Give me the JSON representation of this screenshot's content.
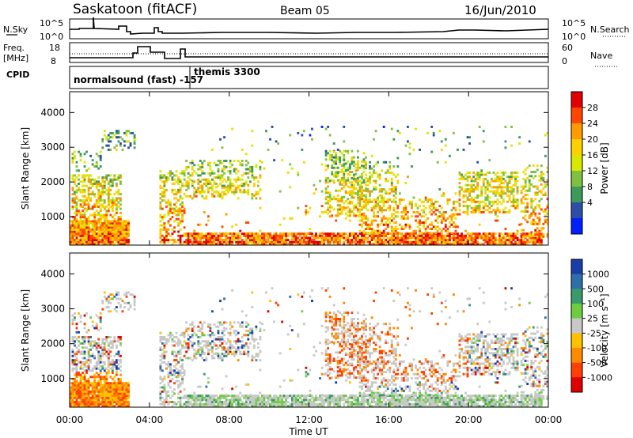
{
  "header": {
    "title": "Saskatoon (fitACF)",
    "beam": "Beam 05",
    "date": "16/Jun/2010"
  },
  "panels": {
    "nsky": {
      "left_label": "N.Sky",
      "right_label": "N.Search",
      "ticks_left": [
        "10^5",
        "10^0"
      ],
      "ticks_right": [
        "10^5",
        "10^0"
      ]
    },
    "freq": {
      "left_label_1": "Freq.",
      "left_label_2": "[MHz]",
      "right_label": "Nave",
      "ticks_left": [
        "18",
        "8"
      ],
      "ticks_right": [
        "60",
        "0"
      ]
    },
    "cpid": {
      "label": "CPID",
      "programs": [
        "normalsound (fast) -157",
        "themis 3300"
      ]
    }
  },
  "chart_data": [
    {
      "type": "heatmap",
      "quantity": "Power",
      "ylabel": "Slant Range [km]",
      "yticks": [
        1000,
        2000,
        3000,
        4000
      ],
      "ylim": [
        180,
        4600
      ],
      "xlim": [
        0,
        24
      ],
      "colorbar_label": "Power [dB]",
      "colorbar_ticks": [
        "28",
        "24",
        "20",
        "16",
        "12",
        "8",
        "4"
      ],
      "colorbar_colors": [
        "#e00000",
        "#ff4500",
        "#ff9a00",
        "#ffd000",
        "#d8e800",
        "#80c040",
        "#3c9a5a",
        "#2c4ea8",
        "#0020ff"
      ]
    },
    {
      "type": "heatmap",
      "quantity": "Velocity",
      "ylabel": "Slant Range [km]",
      "yticks": [
        1000,
        2000,
        3000,
        4000
      ],
      "ylim": [
        180,
        4600
      ],
      "xlim": [
        0,
        24
      ],
      "xlabel": "Time UT",
      "xticks": [
        "00:00",
        "04:00",
        "08:00",
        "12:00",
        "16:00",
        "20:00",
        "00:00"
      ],
      "colorbar_label": "Velocity [m s⁻¹]",
      "colorbar_ticks": [
        "1000",
        "500",
        "100",
        "25",
        "-25",
        "-100",
        "-500",
        "-1000"
      ],
      "colorbar_colors": [
        "#1a3ea8",
        "#2f6fa8",
        "#3a9a6a",
        "#6ecc40",
        "#c8c8c8",
        "#ffc000",
        "#ff8a00",
        "#ff4000",
        "#e00000"
      ]
    }
  ]
}
